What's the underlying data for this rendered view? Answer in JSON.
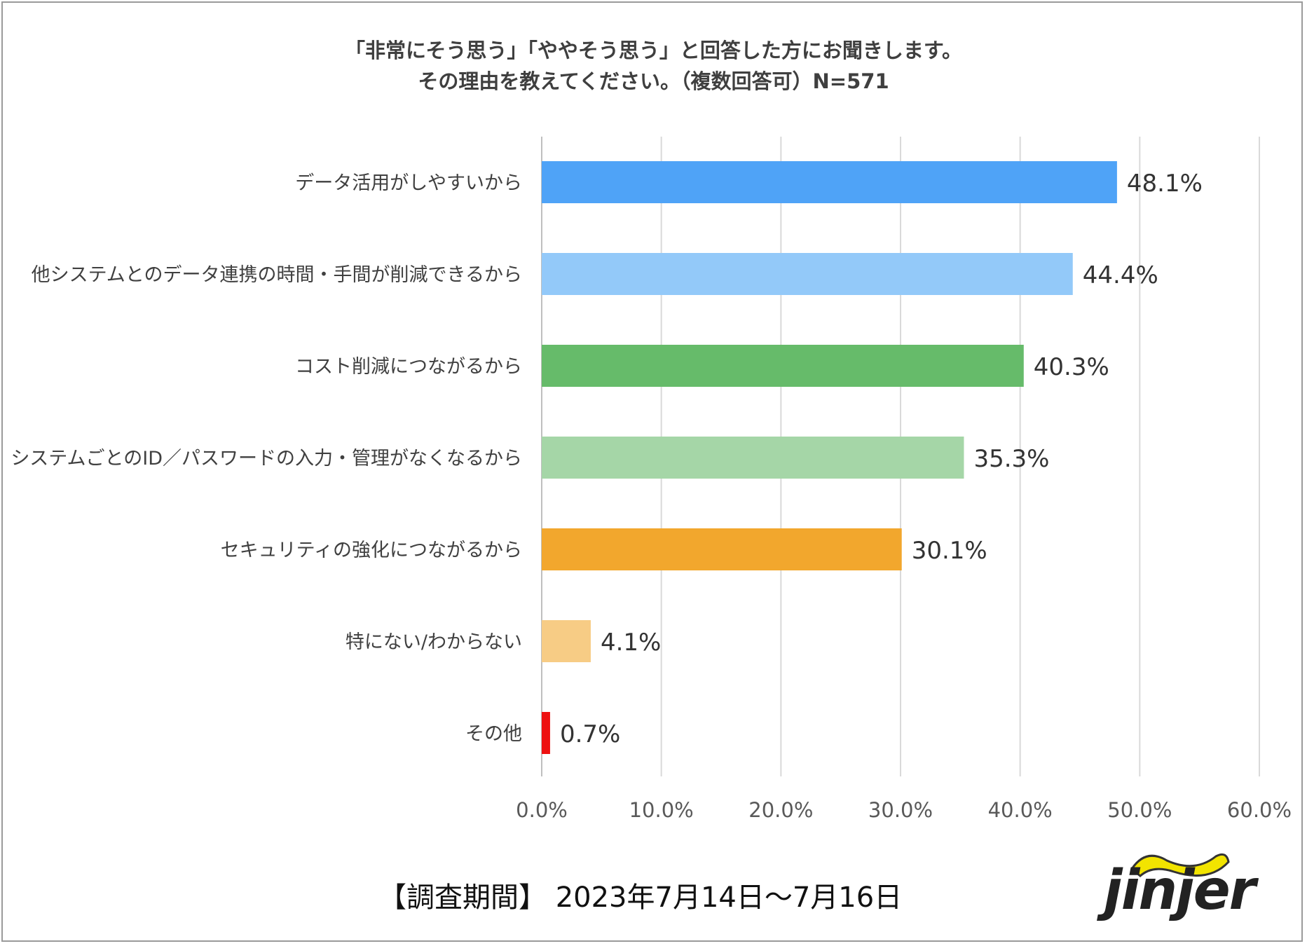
{
  "title": {
    "line1": "「非常にそう思う」「ややそう思う」と回答した方にお聞きします。",
    "line2": "その理由を教えてください。（複数回答可）N=571"
  },
  "footer": {
    "period": "【調査期間】 2023年7月14日～7月16日"
  },
  "logo": {
    "text": "jinjer",
    "accent_color": "#f2e400"
  },
  "chart_data": {
    "type": "bar",
    "orientation": "horizontal",
    "title": "「非常にそう思う」「ややそう思う」と回答した方にお聞きします。その理由を教えてください。（複数回答可）N=571",
    "categories": [
      "データ活用がしやすいから",
      "他システムとのデータ連携の時間・手間が削減できるから",
      "コスト削減につながるから",
      "システムごとのID／パスワードの入力・管理がなくなるから",
      "セキュリティの強化につながるから",
      "特にない/わからない",
      "その他"
    ],
    "values": [
      48.1,
      44.4,
      40.3,
      35.3,
      30.1,
      4.1,
      0.7
    ],
    "value_labels": [
      "48.1%",
      "44.4%",
      "40.3%",
      "35.3%",
      "30.1%",
      "4.1%",
      "0.7%"
    ],
    "colors": [
      "#4fa3f7",
      "#93c9f9",
      "#66bb6a",
      "#a5d6a7",
      "#f2a72d",
      "#f7cc85",
      "#ee1111"
    ],
    "xlim": [
      0,
      60
    ],
    "xticks": [
      0,
      10,
      20,
      30,
      40,
      50,
      60
    ],
    "xtick_labels": [
      "0.0%",
      "10.0%",
      "20.0%",
      "30.0%",
      "40.0%",
      "50.0%",
      "60.0%"
    ],
    "grid": true,
    "xlabel": "",
    "ylabel": ""
  }
}
